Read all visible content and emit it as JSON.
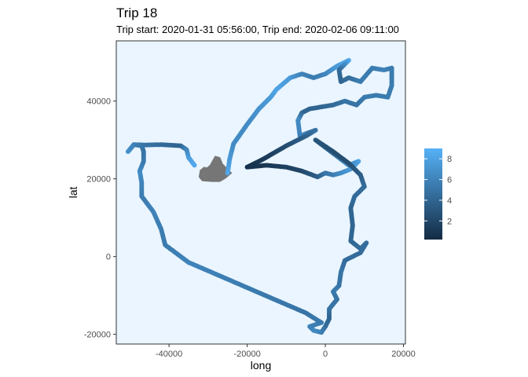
{
  "chart_data": {
    "type": "scatter",
    "title": "Trip 18",
    "subtitle": "Trip start: 2020-01-31 05:56:00, Trip end: 2020-02-06 09:11:00",
    "xlabel": "long",
    "ylabel": "lat",
    "xlim": [
      -53500,
      20500
    ],
    "ylim": [
      -22500,
      55500
    ],
    "x_ticks": [
      -40000,
      -20000,
      0,
      20000
    ],
    "x_tick_labels": [
      "-40000",
      "-20000",
      "0",
      "20000"
    ],
    "y_ticks": [
      -20000,
      0,
      20000,
      40000
    ],
    "y_tick_labels": [
      "-20000",
      "0",
      "20000",
      "40000"
    ],
    "grid": false,
    "panel_background": "#eaf5ff",
    "point_color_low": "#132b43",
    "point_color_high": "#56b1f7",
    "color_scale": {
      "range": [
        0.2,
        9.0
      ],
      "ticks": [
        2,
        4,
        6,
        8
      ],
      "tick_labels": [
        "2",
        "4",
        "6",
        "8"
      ],
      "legend_position": "right"
    },
    "island": {
      "color": "#767676",
      "outline": [
        [
          -29500,
          23500
        ],
        [
          -28200,
          25800
        ],
        [
          -27000,
          25500
        ],
        [
          -26300,
          23800
        ],
        [
          -25000,
          22500
        ],
        [
          -24000,
          21500
        ],
        [
          -25500,
          20200
        ],
        [
          -27000,
          19300
        ],
        [
          -29000,
          19300
        ],
        [
          -31500,
          19500
        ],
        [
          -32300,
          20500
        ],
        [
          -32000,
          22200
        ],
        [
          -31000,
          23000
        ],
        [
          -30300,
          22800
        ]
      ]
    },
    "track": [
      {
        "x": -25000,
        "y": 21500,
        "v": 8.5
      },
      {
        "x": -24500,
        "y": 25000,
        "v": 7.5
      },
      {
        "x": -23500,
        "y": 29000,
        "v": 6.5
      },
      {
        "x": -20000,
        "y": 34000,
        "v": 6.5
      },
      {
        "x": -17000,
        "y": 38000,
        "v": 7.0
      },
      {
        "x": -14000,
        "y": 41000,
        "v": 7.5
      },
      {
        "x": -12500,
        "y": 43000,
        "v": 8.2
      },
      {
        "x": -9000,
        "y": 46000,
        "v": 7.5
      },
      {
        "x": -6000,
        "y": 47000,
        "v": 6.0
      },
      {
        "x": -3000,
        "y": 46000,
        "v": 5.5
      },
      {
        "x": 0,
        "y": 47000,
        "v": 6.0
      },
      {
        "x": 3000,
        "y": 49000,
        "v": 7.5
      },
      {
        "x": 6000,
        "y": 50500,
        "v": 8.5
      },
      {
        "x": 3500,
        "y": 48000,
        "v": 4.5
      },
      {
        "x": 4000,
        "y": 45000,
        "v": 4.0
      },
      {
        "x": 6000,
        "y": 46000,
        "v": 4.5
      },
      {
        "x": 9000,
        "y": 45000,
        "v": 5.5
      },
      {
        "x": 12000,
        "y": 48500,
        "v": 5.5
      },
      {
        "x": 15000,
        "y": 48000,
        "v": 6.0
      },
      {
        "x": 17000,
        "y": 48500,
        "v": 5.5
      },
      {
        "x": 17000,
        "y": 44000,
        "v": 5.5
      },
      {
        "x": 16000,
        "y": 41000,
        "v": 5.5
      },
      {
        "x": 13000,
        "y": 41500,
        "v": 5.5
      },
      {
        "x": 10000,
        "y": 41000,
        "v": 5.5
      },
      {
        "x": 8000,
        "y": 39000,
        "v": 5.0
      },
      {
        "x": 5000,
        "y": 40000,
        "v": 5.0
      },
      {
        "x": 2000,
        "y": 39000,
        "v": 4.5
      },
      {
        "x": -1000,
        "y": 38500,
        "v": 4.0
      },
      {
        "x": -4000,
        "y": 38000,
        "v": 4.0
      },
      {
        "x": -6000,
        "y": 37000,
        "v": 4.0
      },
      {
        "x": -7000,
        "y": 35000,
        "v": 6.5
      },
      {
        "x": -6500,
        "y": 31000,
        "v": 6.0
      },
      {
        "x": -4000,
        "y": 32000,
        "v": 5.5
      },
      {
        "x": -2500,
        "y": 32500,
        "v": 5.0
      },
      {
        "x": -5000,
        "y": 31000,
        "v": 4.0
      },
      {
        "x": -10000,
        "y": 28500,
        "v": 2.5
      },
      {
        "x": -16000,
        "y": 25000,
        "v": 1.2
      },
      {
        "x": -20000,
        "y": 23000,
        "v": 0.6
      },
      {
        "x": -15000,
        "y": 23500,
        "v": 1.0
      },
      {
        "x": -10000,
        "y": 23000,
        "v": 1.5
      },
      {
        "x": -6000,
        "y": 22000,
        "v": 2.0
      },
      {
        "x": -2000,
        "y": 20500,
        "v": 3.5
      },
      {
        "x": 0,
        "y": 21500,
        "v": 5.0
      },
      {
        "x": 2000,
        "y": 21000,
        "v": 5.5
      },
      {
        "x": 4000,
        "y": 21500,
        "v": 6.5
      },
      {
        "x": 6500,
        "y": 22500,
        "v": 7.5
      },
      {
        "x": 8500,
        "y": 24500,
        "v": 8.0
      },
      {
        "x": 6000,
        "y": 23500,
        "v": 6.5
      },
      {
        "x": -2500,
        "y": 30000,
        "v": 3.0
      },
      {
        "x": 2000,
        "y": 27000,
        "v": 2.5
      },
      {
        "x": 6000,
        "y": 24000,
        "v": 2.5
      },
      {
        "x": 9000,
        "y": 21000,
        "v": 3.5
      },
      {
        "x": 10000,
        "y": 18000,
        "v": 4.5
      },
      {
        "x": 7500,
        "y": 15500,
        "v": 4.5
      },
      {
        "x": 6500,
        "y": 12500,
        "v": 4.0
      },
      {
        "x": 7000,
        "y": 8000,
        "v": 4.0
      },
      {
        "x": 6500,
        "y": 4000,
        "v": 4.0
      },
      {
        "x": 9000,
        "y": 2000,
        "v": 4.5
      },
      {
        "x": 10500,
        "y": 3500,
        "v": 4.5
      },
      {
        "x": 9000,
        "y": 1000,
        "v": 4.5
      },
      {
        "x": 5000,
        "y": -1000,
        "v": 4.5
      },
      {
        "x": 4000,
        "y": -4000,
        "v": 5.0
      },
      {
        "x": 3500,
        "y": -7500,
        "v": 5.0
      },
      {
        "x": 2000,
        "y": -9000,
        "v": 5.5
      },
      {
        "x": 3000,
        "y": -11000,
        "v": 5.0
      },
      {
        "x": 1000,
        "y": -13500,
        "v": 5.0
      },
      {
        "x": 1000,
        "y": -16000,
        "v": 4.0
      },
      {
        "x": 0,
        "y": -18000,
        "v": 4.5
      },
      {
        "x": -1000,
        "y": -19500,
        "v": 5.5
      },
      {
        "x": -3000,
        "y": -19000,
        "v": 6.5
      },
      {
        "x": -4000,
        "y": -18000,
        "v": 6.0
      },
      {
        "x": -1000,
        "y": -17000,
        "v": 5.5
      },
      {
        "x": -5000,
        "y": -14500,
        "v": 5.0
      },
      {
        "x": -20000,
        "y": -8000,
        "v": 5.5
      },
      {
        "x": -35000,
        "y": -1500,
        "v": 6.0
      },
      {
        "x": -41000,
        "y": 3000,
        "v": 5.5
      },
      {
        "x": -42000,
        "y": 7000,
        "v": 5.5
      },
      {
        "x": -44000,
        "y": 11500,
        "v": 6.0
      },
      {
        "x": -47000,
        "y": 15500,
        "v": 5.5
      },
      {
        "x": -47000,
        "y": 19000,
        "v": 6.0
      },
      {
        "x": -47500,
        "y": 22000,
        "v": 6.5
      },
      {
        "x": -46500,
        "y": 24500,
        "v": 5.5
      },
      {
        "x": -46500,
        "y": 27000,
        "v": 5.0
      },
      {
        "x": -47000,
        "y": 28500,
        "v": 5.0
      },
      {
        "x": -49000,
        "y": 28800,
        "v": 5.5
      },
      {
        "x": -50500,
        "y": 27000,
        "v": 7.0
      },
      {
        "x": -49000,
        "y": 28800,
        "v": 6.0
      },
      {
        "x": -46000,
        "y": 28700,
        "v": 5.0
      },
      {
        "x": -42000,
        "y": 28800,
        "v": 4.5
      },
      {
        "x": -37000,
        "y": 28500,
        "v": 4.0
      },
      {
        "x": -35500,
        "y": 27500,
        "v": 6.0
      },
      {
        "x": -35000,
        "y": 25500,
        "v": 7.5
      },
      {
        "x": -33500,
        "y": 23500,
        "v": 8.5
      }
    ]
  }
}
